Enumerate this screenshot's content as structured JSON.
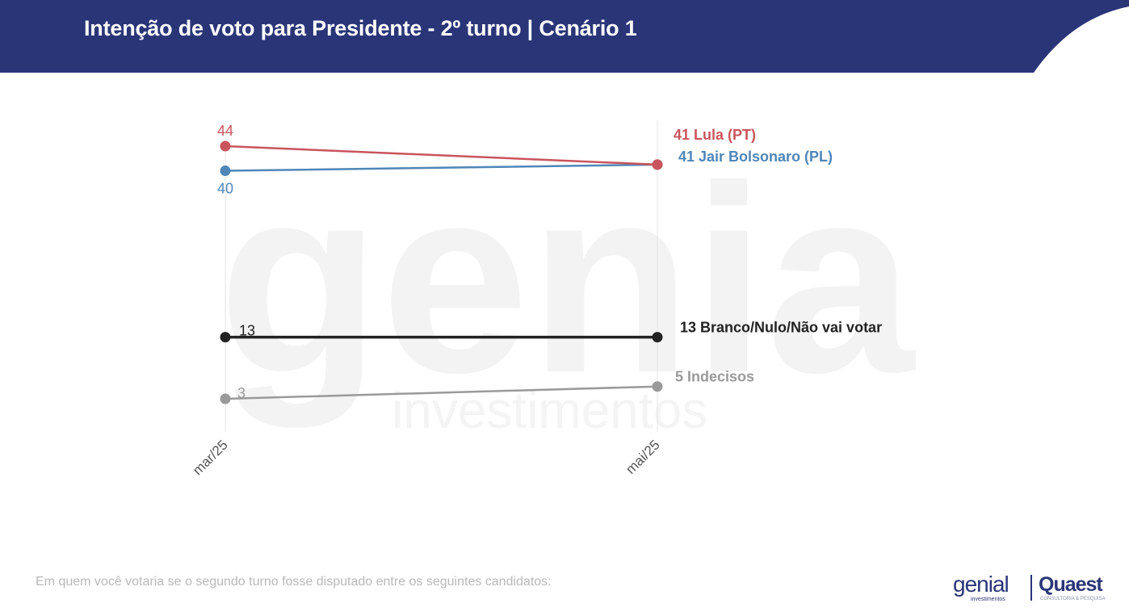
{
  "header": {
    "title": "Intenção de voto para Presidente - 2º turno | Cenário 1"
  },
  "watermark": {
    "brand": "genial",
    "sub": "investimentos"
  },
  "footer": {
    "question": "Em quem você votaria se o segundo turno fosse disputado entre os seguintes candidatos:",
    "logo_genial": "genial",
    "logo_genial_sub": "investimentos",
    "logo_quaest": "Quaest",
    "logo_quaest_sub": "CONSULTORIA & PESQUISA"
  },
  "colors": {
    "header_bg": "#2a3578",
    "lula": "#c9545c",
    "bolsonaro": "#4f86b9",
    "branco": "#222222",
    "indecisos": "#9a9a9a"
  },
  "chart_data": {
    "type": "line",
    "categories": [
      "mar/25",
      "mai/25"
    ],
    "series": [
      {
        "key": "lula",
        "values": [
          44,
          41
        ],
        "start_label": "44",
        "end_label": "41 Lula (PT)"
      },
      {
        "key": "bolsonaro",
        "values": [
          40,
          41
        ],
        "start_label": "40",
        "end_label": "41 Jair Bolsonaro (PL)"
      },
      {
        "key": "branco",
        "values": [
          13,
          13
        ],
        "start_label": "13",
        "end_label": "13 Branco/Nulo/Não vai votar"
      },
      {
        "key": "indecisos",
        "values": [
          3,
          5
        ],
        "start_label": "3",
        "end_label": "5 Indecisos"
      }
    ],
    "ylim": [
      0,
      46
    ],
    "grid": "vertical lines at categories",
    "legend": "end-of-line labels"
  }
}
